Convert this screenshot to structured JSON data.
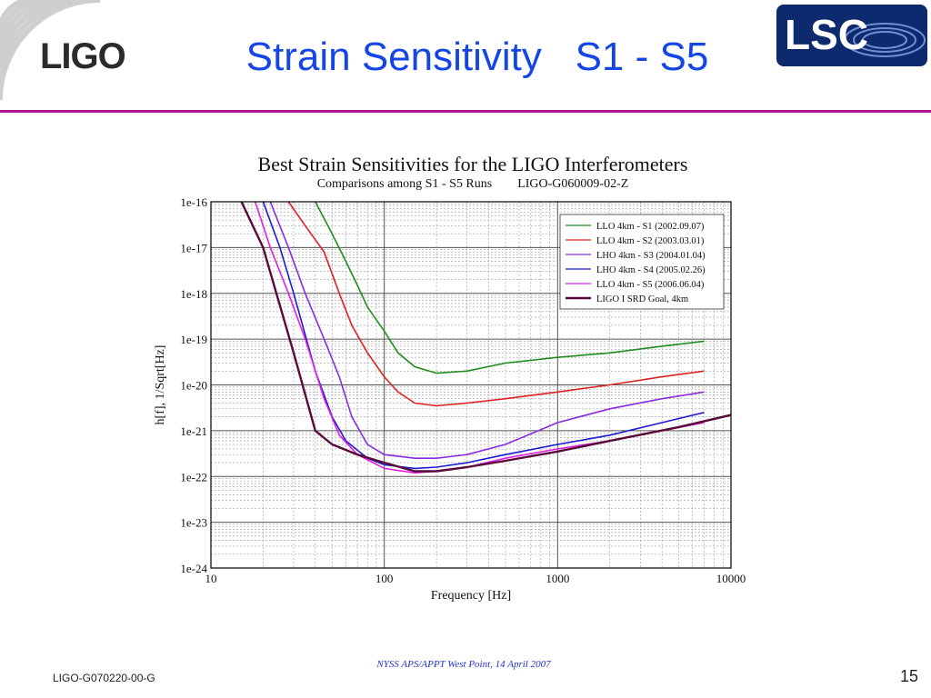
{
  "slide": {
    "title": "Strain Sensitivity   S1 - S5",
    "logo_left_text": "LIGO",
    "logo_right_text": "LSC",
    "footer_left": "LIGO-G070220-00-G",
    "footer_center": "NYSS APS/APPT West Point, 14 April 2007",
    "page_number": "15",
    "colors": {
      "title": "#1446e6",
      "rule": "#b0168c",
      "lsc_bg": "#0d2a6e"
    }
  },
  "chart_data": {
    "type": "line",
    "title": "Best Strain Sensitivities for the LIGO Interferometers",
    "subtitle": "Comparisons among S1 - S5 Runs        LIGO-G060009-02-Z",
    "xlabel": "Frequency [Hz]",
    "ylabel": "h[f], 1/Sqrt[Hz]",
    "x_scale": "log",
    "y_scale": "log",
    "xlim": [
      10,
      10000
    ],
    "ylim": [
      1e-24,
      1e-16
    ],
    "x_ticks": [
      "10",
      "100",
      "1000",
      "10000"
    ],
    "y_ticks": [
      "1e-16",
      "1e-17",
      "1e-18",
      "1e-19",
      "1e-20",
      "1e-21",
      "1e-22",
      "1e-23",
      "1e-24"
    ],
    "grid": true,
    "legend_position": "top-right",
    "series": [
      {
        "name": "LLO 4km - S1 (2002.09.07)",
        "color": "#1e8c1e",
        "x": [
          40,
          50,
          60,
          70,
          80,
          100,
          120,
          150,
          200,
          300,
          500,
          1000,
          2000,
          4000,
          7000
        ],
        "y": [
          1e-16,
          2e-17,
          5e-18,
          1.5e-18,
          5e-19,
          1.5e-19,
          5e-20,
          2.5e-20,
          1.8e-20,
          2e-20,
          3e-20,
          4e-20,
          5e-20,
          7e-20,
          9e-20
        ]
      },
      {
        "name": "LLO 4km - S2 (2003.03.01)",
        "color": "#e02020",
        "x": [
          28,
          35,
          45,
          55,
          65,
          80,
          100,
          120,
          150,
          200,
          300,
          500,
          1000,
          2000,
          4000,
          7000
        ],
        "y": [
          1e-16,
          3e-17,
          8e-18,
          1e-18,
          2e-19,
          5e-20,
          1.5e-20,
          7e-21,
          4e-21,
          3.5e-21,
          4e-21,
          5e-21,
          7e-21,
          1e-20,
          1.5e-20,
          2e-20
        ]
      },
      {
        "name": "LHO 4km - S3 (2004.01.04)",
        "color": "#8a2be2",
        "x": [
          22,
          28,
          35,
          45,
          55,
          65,
          80,
          100,
          150,
          200,
          300,
          500,
          1000,
          2000,
          4000,
          7000
        ],
        "y": [
          1e-16,
          1e-17,
          1e-18,
          1e-19,
          1.5e-20,
          2e-21,
          5e-22,
          3e-22,
          2.5e-22,
          2.5e-22,
          3e-22,
          5e-22,
          1.5e-21,
          3e-21,
          5e-21,
          7e-21
        ]
      },
      {
        "name": "LHO 4km - S4 (2005.02.26)",
        "color": "#1a1ad0",
        "x": [
          20,
          25,
          30,
          40,
          50,
          60,
          80,
          100,
          150,
          200,
          300,
          500,
          1000,
          2000,
          4000,
          7000
        ],
        "y": [
          1e-16,
          1e-17,
          1e-18,
          2e-20,
          2e-21,
          6e-22,
          2.5e-22,
          1.8e-22,
          1.5e-22,
          1.6e-22,
          2e-22,
          3e-22,
          5e-22,
          8e-22,
          1.5e-21,
          2.5e-21
        ]
      },
      {
        "name": "LLO 4km - S5 (2006.06.04)",
        "color": "#e020e0",
        "x": [
          18,
          22,
          28,
          35,
          45,
          55,
          70,
          100,
          150,
          200,
          300,
          500,
          1000,
          2000,
          4000,
          7000
        ],
        "y": [
          1e-16,
          1e-17,
          1e-18,
          1e-19,
          5e-21,
          8e-22,
          3e-22,
          1.5e-22,
          1.2e-22,
          1.3e-22,
          1.6e-22,
          2.5e-22,
          4e-22,
          6e-22,
          1e-21,
          1.5e-21
        ]
      },
      {
        "name": "LIGO I SRD Goal, 4km",
        "color": "#5a0a3a",
        "x": [
          15,
          20,
          30,
          40,
          50,
          70,
          100,
          150,
          200,
          300,
          500,
          1000,
          2000,
          5000,
          10000
        ],
        "y": [
          1e-16,
          1e-17,
          5e-20,
          1e-21,
          5e-22,
          3e-22,
          2e-22,
          1.3e-22,
          1.3e-22,
          1.6e-22,
          2.2e-22,
          3.5e-22,
          6e-22,
          1.2e-21,
          2.2e-21
        ]
      }
    ]
  }
}
